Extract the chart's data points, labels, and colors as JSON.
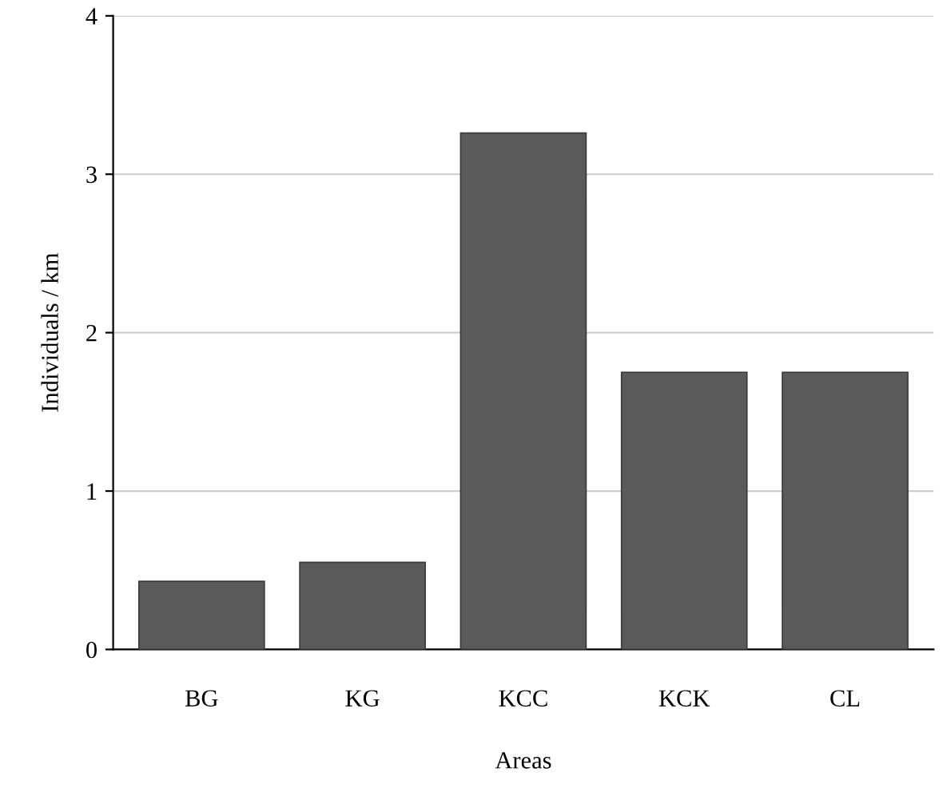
{
  "chart_data": {
    "type": "bar",
    "xlabel": "Areas",
    "ylabel": "Individuals / km",
    "categories": [
      "BG",
      "KG",
      "KCC",
      "KCK",
      "CL"
    ],
    "values": [
      0.43,
      0.55,
      3.26,
      1.75,
      1.75
    ],
    "color": "#5a5a5a",
    "ylim": [
      0,
      4
    ],
    "yticks": [
      0,
      1,
      2,
      3,
      4
    ],
    "grid": "y"
  }
}
